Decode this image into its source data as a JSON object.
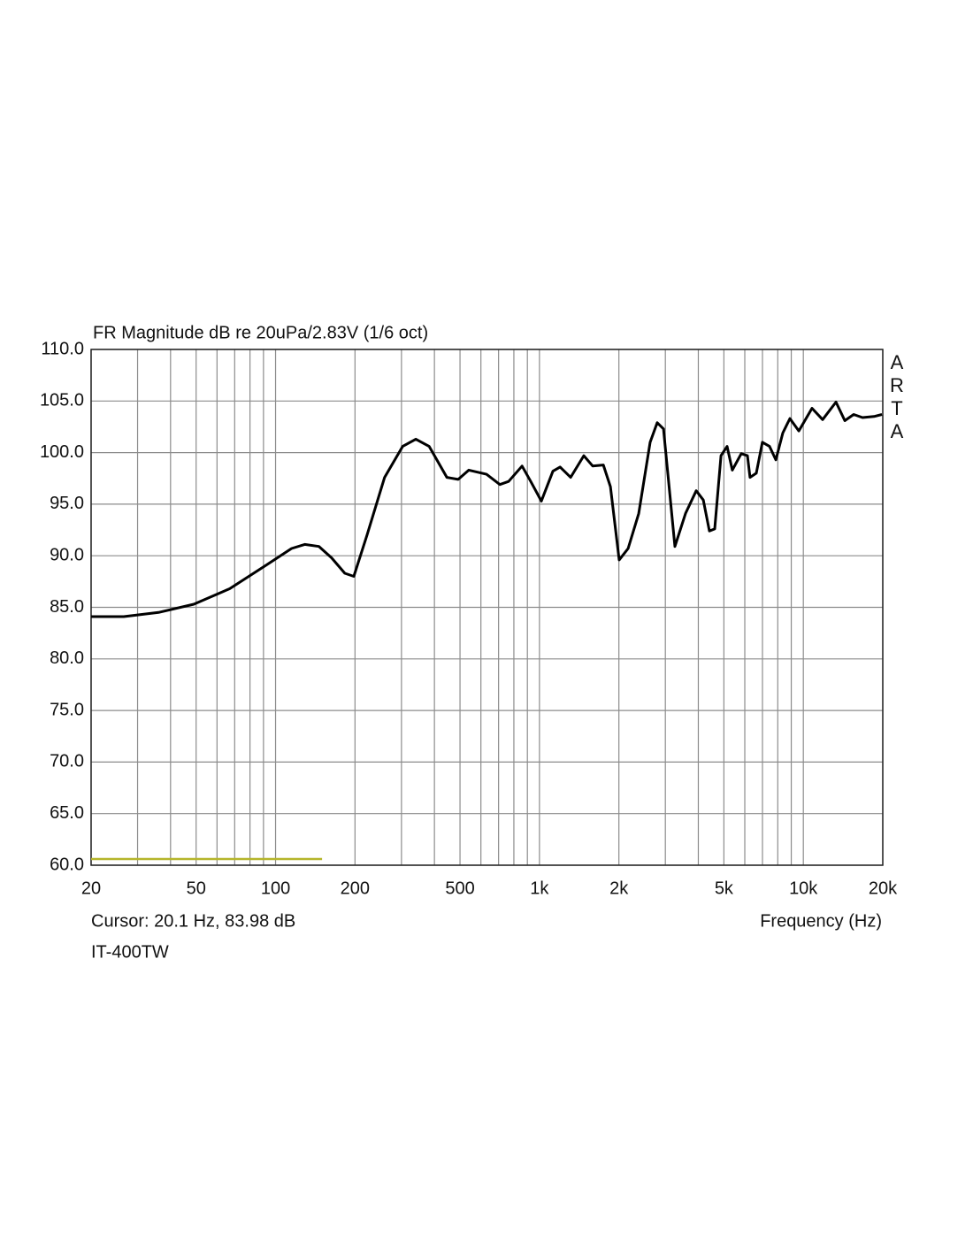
{
  "chart_data": {
    "type": "line",
    "title": "FR Magnitude dB re 20uPa/2.83V (1/6 oct)",
    "watermark": "ARTA",
    "xlabel": "Frequency (Hz)",
    "cursor_text": "Cursor: 20.1 Hz, 83.98 dB",
    "footnote": "IT-400TW",
    "xscale": "log",
    "grid": true,
    "xlim": [
      20,
      20000
    ],
    "xticks": [
      20,
      50,
      100,
      200,
      500,
      {
        "value": 1000,
        "label": "1k"
      },
      {
        "value": 2000,
        "label": "2k"
      },
      {
        "value": 5000,
        "label": "5k"
      },
      {
        "value": 10000,
        "label": "10k"
      },
      {
        "value": 20000,
        "label": "20k"
      }
    ],
    "xminor_ticks": [
      30,
      40,
      60,
      70,
      80,
      90,
      300,
      400,
      600,
      700,
      800,
      900,
      3000,
      4000,
      6000,
      7000,
      8000,
      9000
    ],
    "ylim": [
      60,
      110
    ],
    "yticks": [
      {
        "value": 60,
        "label": "60.0"
      },
      {
        "value": 65,
        "label": "65.0"
      },
      {
        "value": 70,
        "label": "70.0"
      },
      {
        "value": 75,
        "label": "75.0"
      },
      {
        "value": 80,
        "label": "80.0"
      },
      {
        "value": 85,
        "label": "85.0"
      },
      {
        "value": 90,
        "label": "90.0"
      },
      {
        "value": 95,
        "label": "95.0"
      },
      {
        "value": 100,
        "label": "100.0"
      },
      {
        "value": 105,
        "label": "105.0"
      },
      {
        "value": 110,
        "label": "110.0"
      }
    ],
    "series": [
      {
        "color": "#000000",
        "x": [
          20,
          26.6,
          36,
          49,
          67,
          91,
          115,
          129,
          146,
          163,
          183,
          198,
          222,
          259,
          303,
          340,
          382,
          446,
          492,
          540,
          630,
          708,
          764,
          859,
          927,
          1017,
          1125,
          1197,
          1313,
          1473,
          1592,
          1746,
          1858,
          2005,
          2167,
          2378,
          2628,
          2795,
          2951,
          3260,
          3578,
          3927,
          4178,
          4407,
          4615,
          4874,
          5143,
          5383,
          5819,
          6138,
          6281,
          6634,
          6998,
          7446,
          7866,
          8361,
          8893,
          9612,
          10789,
          11830,
          13300,
          14360,
          15520,
          16760,
          18530,
          19860
        ],
        "values": [
          84.1,
          84.1,
          84.5,
          85.3,
          86.8,
          89.0,
          90.7,
          91.1,
          90.9,
          89.8,
          88.3,
          88.0,
          92.0,
          97.6,
          100.6,
          101.3,
          100.6,
          97.6,
          97.4,
          98.3,
          97.9,
          96.9,
          97.2,
          98.7,
          97.2,
          95.3,
          98.2,
          98.6,
          97.6,
          99.7,
          98.7,
          98.8,
          96.7,
          89.6,
          90.7,
          94.1,
          101.0,
          102.9,
          102.3,
          90.9,
          94.1,
          96.3,
          95.4,
          92.4,
          92.6,
          99.7,
          100.6,
          98.3,
          99.9,
          99.7,
          97.6,
          98.0,
          101.0,
          100.6,
          99.3,
          101.9,
          103.3,
          102.1,
          104.3,
          103.2,
          104.9,
          103.1,
          103.7,
          103.4,
          103.5,
          103.7
        ]
      },
      {
        "color": "#b5b52a",
        "x": [
          20,
          150
        ],
        "values": [
          60.6,
          60.6
        ]
      }
    ]
  }
}
